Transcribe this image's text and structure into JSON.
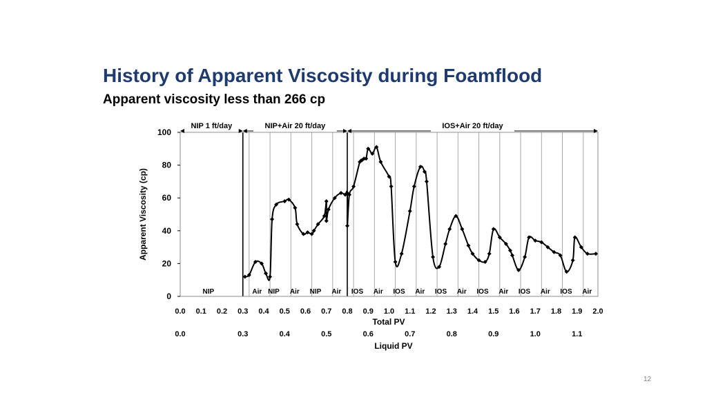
{
  "slide": {
    "title": "History of Apparent Viscosity during Foamflood",
    "subtitle": "Apparent viscosity less than 266 cp",
    "page_number": "12"
  },
  "chart_data": {
    "type": "line",
    "xlabel": "Total PV",
    "ylabel": "Apparent Viscosity (cp)",
    "secondary_xlabel": "Liquid PV",
    "xlim": [
      0.0,
      2.0
    ],
    "ylim": [
      0,
      100
    ],
    "x_ticks": [
      "0.0",
      "0.1",
      "0.2",
      "0.3",
      "0.4",
      "0.5",
      "0.6",
      "0.7",
      "0.8",
      "0.9",
      "1.0",
      "1.1",
      "1.2",
      "1.3",
      "1.4",
      "1.5",
      "1.6",
      "1.7",
      "1.8",
      "1.9",
      "2.0"
    ],
    "y_ticks": [
      "0",
      "20",
      "40",
      "60",
      "80",
      "100"
    ],
    "secondary_x_ticks": [
      {
        "at": 0.0,
        "label": "0.0"
      },
      {
        "at": 0.3,
        "label": "0.3"
      },
      {
        "at": 0.5,
        "label": "0.4"
      },
      {
        "at": 0.7,
        "label": "0.5"
      },
      {
        "at": 0.9,
        "label": "0.6"
      },
      {
        "at": 1.1,
        "label": "0.7"
      },
      {
        "at": 1.3,
        "label": "0.8"
      },
      {
        "at": 1.5,
        "label": "0.9"
      },
      {
        "at": 1.7,
        "label": "1.0"
      },
      {
        "at": 1.9,
        "label": "1.1"
      }
    ],
    "phase_lines": [
      0.3,
      0.8
    ],
    "segment_lines": [
      0.33,
      0.43,
      0.53,
      0.63,
      0.73,
      0.83,
      0.93,
      1.03,
      1.13,
      1.23,
      1.33,
      1.43,
      1.53,
      1.63,
      1.73,
      1.83,
      1.93
    ],
    "phases": [
      {
        "label": "NIP 1 ft/day",
        "from": 0.0,
        "to": 0.3
      },
      {
        "label": "NIP+Air 20 ft/day",
        "from": 0.3,
        "to": 0.8
      },
      {
        "label": "IOS+Air 20 ft/day",
        "from": 0.8,
        "to": 2.0
      }
    ],
    "segments": [
      {
        "label": "NIP",
        "at": 0.135
      },
      {
        "label": "Air",
        "at": 0.368
      },
      {
        "label": "NIP",
        "at": 0.448
      },
      {
        "label": "Air",
        "at": 0.548
      },
      {
        "label": "NIP",
        "at": 0.648
      },
      {
        "label": "Air",
        "at": 0.748
      },
      {
        "label": "IOS",
        "at": 0.848
      },
      {
        "label": "Air",
        "at": 0.948
      },
      {
        "label": "IOS",
        "at": 1.048
      },
      {
        "label": "Air",
        "at": 1.148
      },
      {
        "label": "IOS",
        "at": 1.248
      },
      {
        "label": "Air",
        "at": 1.348
      },
      {
        "label": "IOS",
        "at": 1.448
      },
      {
        "label": "Air",
        "at": 1.548
      },
      {
        "label": "IOS",
        "at": 1.648
      },
      {
        "label": "Air",
        "at": 1.748
      },
      {
        "label": "IOS",
        "at": 1.848
      },
      {
        "label": "Air",
        "at": 1.948
      }
    ],
    "series": [
      {
        "x": [
          0.31,
          0.33,
          0.36,
          0.39,
          0.41,
          0.43,
          0.44,
          0.46,
          0.5,
          0.52,
          0.55,
          0.56,
          0.59,
          0.61,
          0.63,
          0.64,
          0.66,
          0.69,
          0.7,
          0.7,
          0.71,
          0.74,
          0.77,
          0.79,
          0.8,
          0.8,
          0.81,
          0.83,
          0.86,
          0.87,
          0.88,
          0.89,
          0.9,
          0.92,
          0.94,
          0.96,
          1.0,
          1.01,
          1.03,
          1.06,
          1.1,
          1.12,
          1.15,
          1.17,
          1.18,
          1.21,
          1.24,
          1.27,
          1.29,
          1.32,
          1.35,
          1.38,
          1.4,
          1.43,
          1.46,
          1.48,
          1.5,
          1.53,
          1.56,
          1.58,
          1.59,
          1.62,
          1.65,
          1.67,
          1.7,
          1.73,
          1.76,
          1.79,
          1.82,
          1.85,
          1.88,
          1.89,
          1.92,
          1.95,
          1.99
        ],
        "y": [
          12,
          13,
          21,
          20,
          14,
          12,
          47,
          56,
          58,
          59,
          54,
          44,
          38,
          39,
          38,
          40,
          44,
          49,
          58,
          46,
          53,
          60,
          63,
          62,
          63,
          43,
          62,
          67,
          82,
          83,
          84,
          84,
          90,
          87,
          91,
          82,
          73,
          67,
          21,
          26,
          52,
          67,
          79,
          76,
          70,
          24,
          18,
          32,
          41,
          49,
          41,
          31,
          26,
          22,
          21,
          26,
          41,
          36,
          32,
          28,
          25,
          16,
          24,
          36,
          34,
          33,
          30,
          27,
          25,
          15,
          22,
          36,
          30,
          26,
          26
        ]
      }
    ]
  }
}
